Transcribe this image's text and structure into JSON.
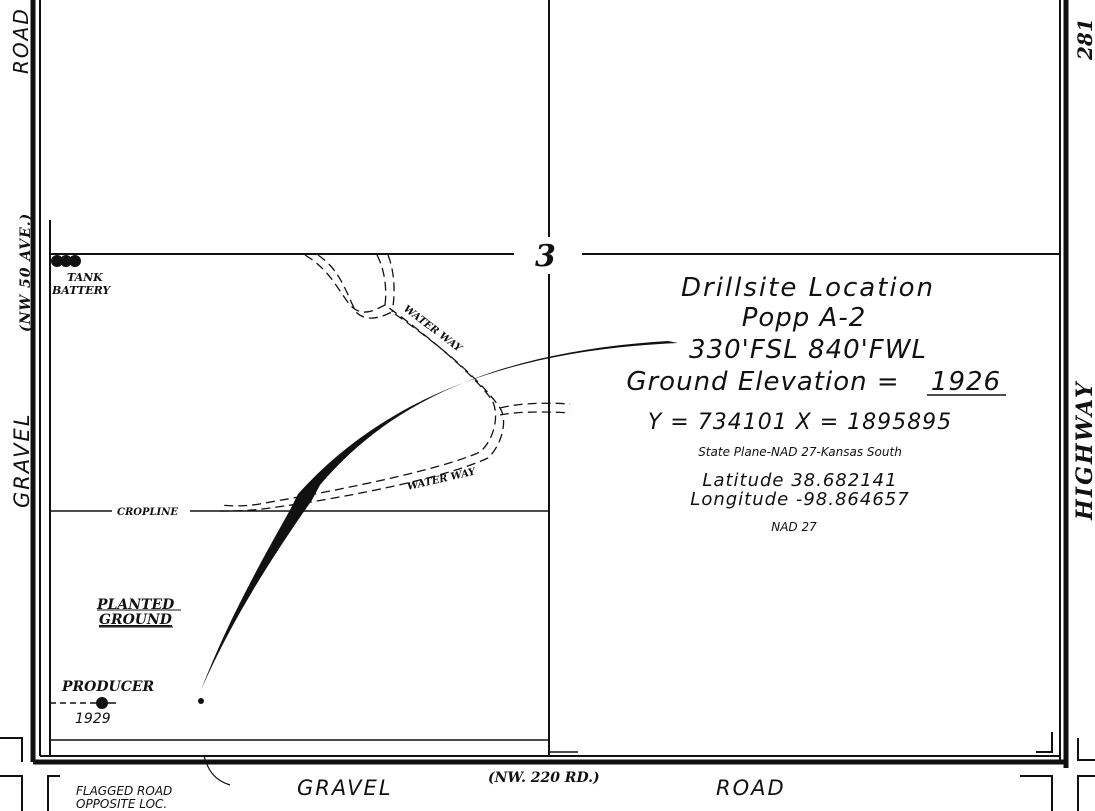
{
  "colors": {
    "ink": "#111111",
    "paper": "#ffffff",
    "soft": "#d9d9d9"
  },
  "roads": {
    "west_road_top": "ROAD",
    "west_road_alt": "(NW 50 AVE.)",
    "west_road_bottom": "GRAVEL",
    "east_highway_number": "281",
    "east_highway": "HIGHWAY",
    "south_left": "GRAVEL",
    "south_alt": "(NW. 220 RD.)",
    "south_right": "ROAD"
  },
  "section_number": "3",
  "features": {
    "tank_battery_line1": "TANK",
    "tank_battery_line2": "BATTERY",
    "water_way_upper": "WATER WAY",
    "water_way_lower": "WATER WAY",
    "cropline": "CROPLINE",
    "planted_line1": "PLANTED",
    "planted_line2": "GROUND",
    "producer": "PRODUCER",
    "producer_elevation": "1929",
    "flagged_line1": "FLAGGED ROAD",
    "flagged_line2": "OPPOSITE LOC."
  },
  "drillsite": {
    "title": "Drillsite Location",
    "well_name": "Popp A-2",
    "footage": "330'FSL  840'FWL",
    "elevation_label": "Ground Elevation = ",
    "elevation_value": "1926",
    "coordinates_xy": "Y = 734101   X = 1895895",
    "projection": "State Plane-NAD 27-Kansas South",
    "latitude": "Latitude 38.682141",
    "longitude": "Longitude -98.864657",
    "datum": "NAD 27"
  }
}
